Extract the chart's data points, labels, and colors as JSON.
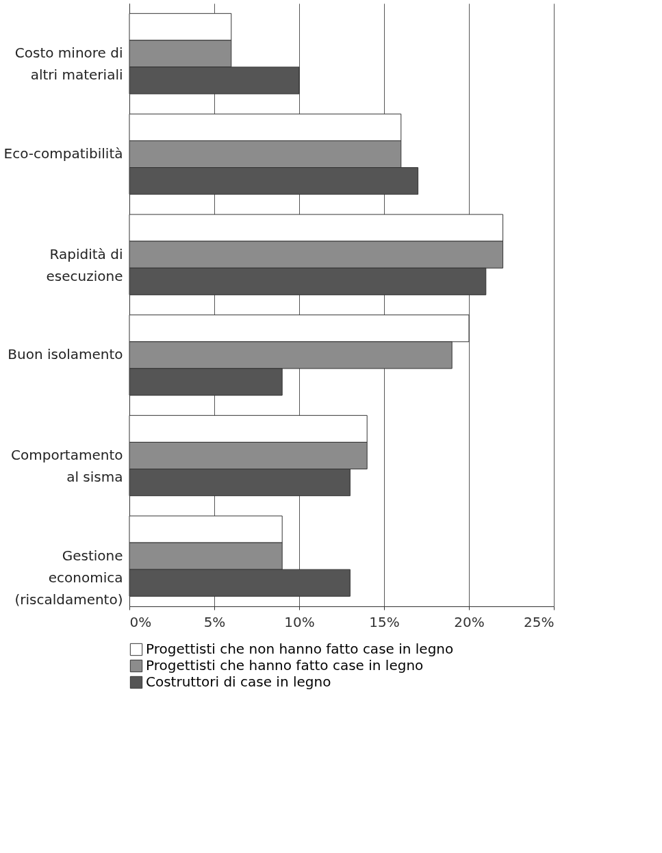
{
  "chart_data": {
    "type": "bar",
    "orientation": "horizontal",
    "categories": [
      "Costo minore di altri materiali",
      "Eco-compatibilità",
      "Rapidità di esecuzione",
      "Buon isolamento",
      "Comportamento al sisma",
      "Gestione economica (riscaldamento)"
    ],
    "series": [
      {
        "name": "Progettisti che non hanno fatto case in legno",
        "color": "#ffffff",
        "values": [
          6,
          16,
          22,
          20,
          14,
          9
        ]
      },
      {
        "name": "Progettisti che hanno fatto case in legno",
        "color": "#8c8c8c",
        "values": [
          6,
          16,
          22,
          19,
          14,
          9
        ]
      },
      {
        "name": "Costruttori di case in legno",
        "color": "#555555",
        "values": [
          10,
          17,
          21,
          9,
          13,
          13
        ]
      }
    ],
    "xlim": [
      0,
      25
    ],
    "xticks": [
      {
        "value": 0,
        "label": "0%"
      },
      {
        "value": 5,
        "label": "5%"
      },
      {
        "value": 10,
        "label": "10%"
      },
      {
        "value": 15,
        "label": "15%"
      },
      {
        "value": 20,
        "label": "20%"
      },
      {
        "value": 25,
        "label": "25%"
      }
    ],
    "grid": "x",
    "legend": "bottom left"
  }
}
